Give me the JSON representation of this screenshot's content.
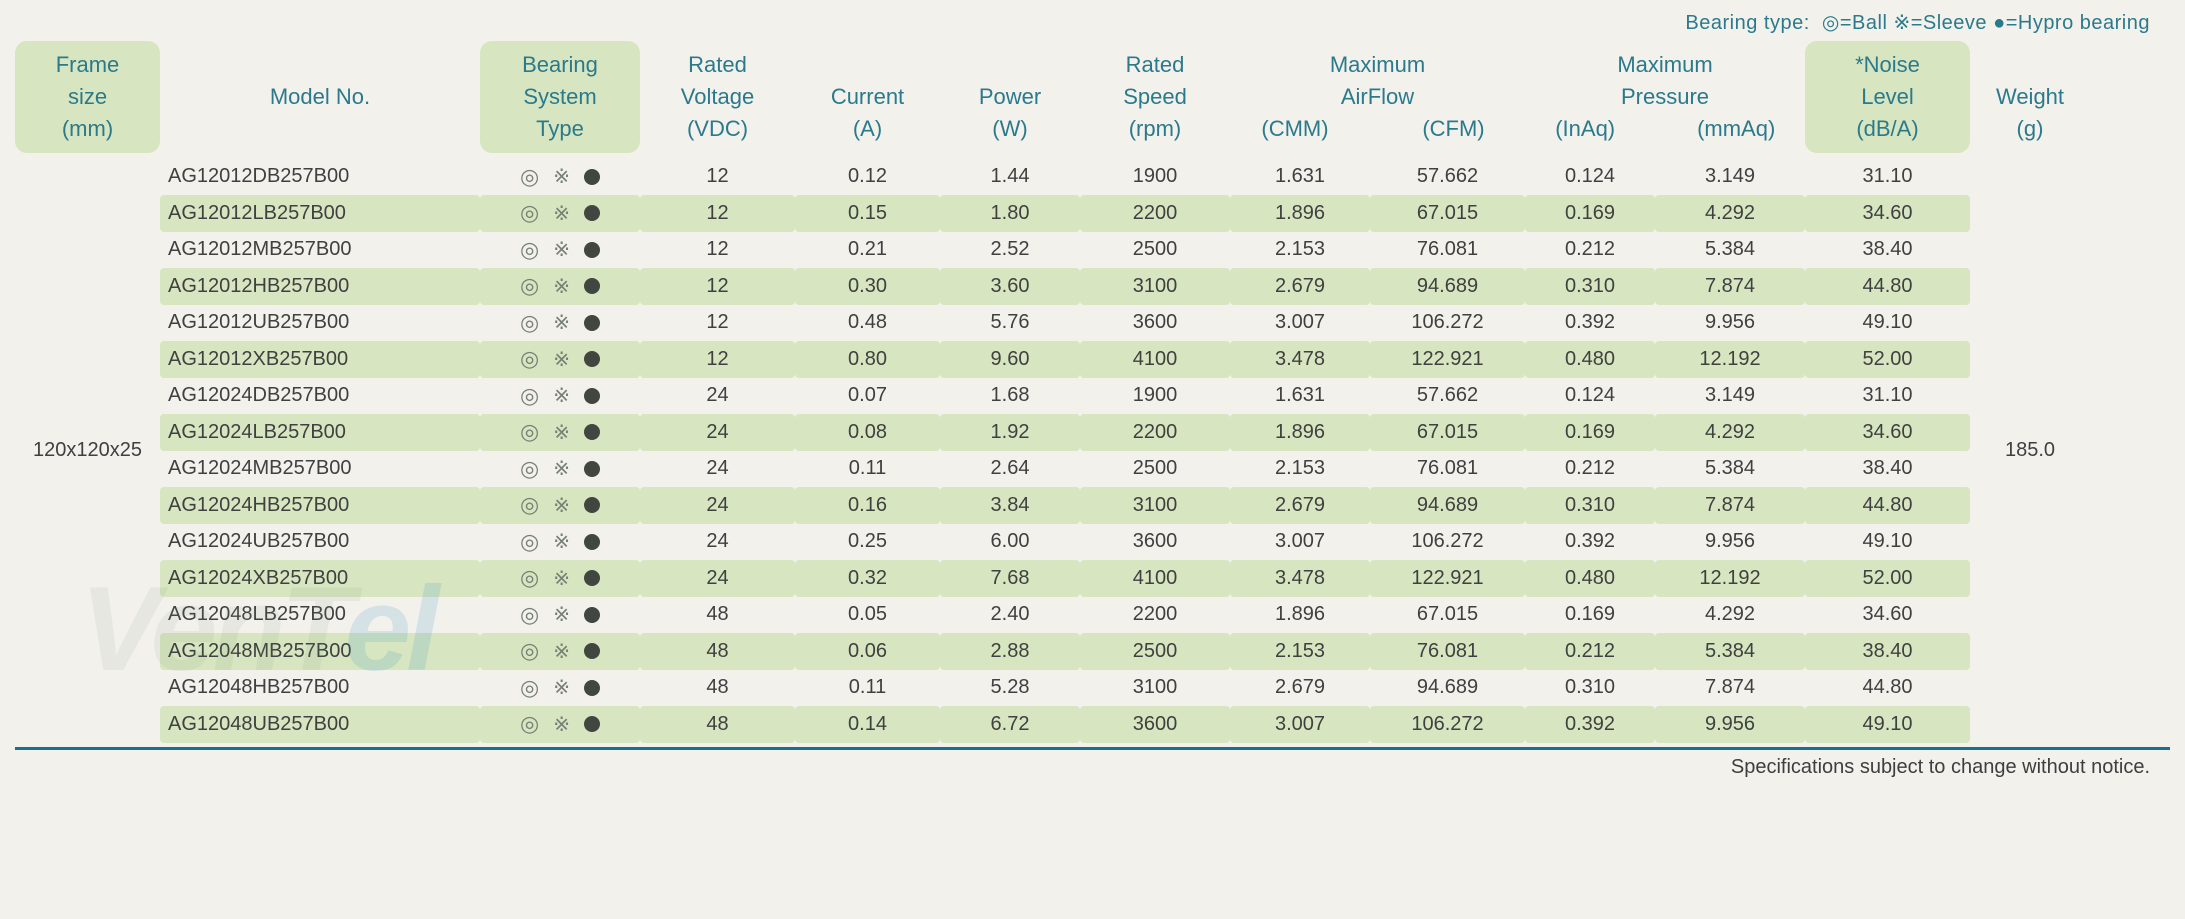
{
  "legend": {
    "prefix": "Bearing type:",
    "ball": "◎=Ball",
    "sleeve": "※=Sleeve",
    "hypro": "●=Hypro bearing"
  },
  "columns": {
    "frame": [
      "Frame",
      "size",
      "(mm)"
    ],
    "model": [
      "Model No."
    ],
    "bearing": [
      "Bearing",
      "System",
      "Type"
    ],
    "voltage": [
      "Rated",
      "Voltage",
      "(VDC)"
    ],
    "current": [
      "Current",
      "(A)"
    ],
    "power": [
      "Power",
      "(W)"
    ],
    "speed": [
      "Rated",
      "Speed",
      "(rpm)"
    ],
    "airflow": [
      "Maximum",
      "AirFlow"
    ],
    "airflow_sub": [
      "(CMM)",
      "(CFM)"
    ],
    "pressure": [
      "Maximum",
      "Pressure"
    ],
    "pressure_sub": [
      "(InAq)",
      "(mmAq)"
    ],
    "noise": [
      "*Noise",
      "Level",
      "(dB/A)"
    ],
    "weight": [
      "Weight",
      "(g)"
    ]
  },
  "frame_size": "120x120x25",
  "weight_value": "185.0",
  "rows": [
    {
      "model": "AG12012DB257B00",
      "voltage": "12",
      "current": "0.12",
      "power": "1.44",
      "speed": "1900",
      "cmm": "1.631",
      "cfm": "57.662",
      "inaq": "0.124",
      "mmaq": "3.149",
      "noise": "31.10"
    },
    {
      "model": "AG12012LB257B00",
      "voltage": "12",
      "current": "0.15",
      "power": "1.80",
      "speed": "2200",
      "cmm": "1.896",
      "cfm": "67.015",
      "inaq": "0.169",
      "mmaq": "4.292",
      "noise": "34.60"
    },
    {
      "model": "AG12012MB257B00",
      "voltage": "12",
      "current": "0.21",
      "power": "2.52",
      "speed": "2500",
      "cmm": "2.153",
      "cfm": "76.081",
      "inaq": "0.212",
      "mmaq": "5.384",
      "noise": "38.40"
    },
    {
      "model": "AG12012HB257B00",
      "voltage": "12",
      "current": "0.30",
      "power": "3.60",
      "speed": "3100",
      "cmm": "2.679",
      "cfm": "94.689",
      "inaq": "0.310",
      "mmaq": "7.874",
      "noise": "44.80"
    },
    {
      "model": "AG12012UB257B00",
      "voltage": "12",
      "current": "0.48",
      "power": "5.76",
      "speed": "3600",
      "cmm": "3.007",
      "cfm": "106.272",
      "inaq": "0.392",
      "mmaq": "9.956",
      "noise": "49.10"
    },
    {
      "model": "AG12012XB257B00",
      "voltage": "12",
      "current": "0.80",
      "power": "9.60",
      "speed": "4100",
      "cmm": "3.478",
      "cfm": "122.921",
      "inaq": "0.480",
      "mmaq": "12.192",
      "noise": "52.00"
    },
    {
      "model": "AG12024DB257B00",
      "voltage": "24",
      "current": "0.07",
      "power": "1.68",
      "speed": "1900",
      "cmm": "1.631",
      "cfm": "57.662",
      "inaq": "0.124",
      "mmaq": "3.149",
      "noise": "31.10"
    },
    {
      "model": "AG12024LB257B00",
      "voltage": "24",
      "current": "0.08",
      "power": "1.92",
      "speed": "2200",
      "cmm": "1.896",
      "cfm": "67.015",
      "inaq": "0.169",
      "mmaq": "4.292",
      "noise": "34.60"
    },
    {
      "model": "AG12024MB257B00",
      "voltage": "24",
      "current": "0.11",
      "power": "2.64",
      "speed": "2500",
      "cmm": "2.153",
      "cfm": "76.081",
      "inaq": "0.212",
      "mmaq": "5.384",
      "noise": "38.40"
    },
    {
      "model": "AG12024HB257B00",
      "voltage": "24",
      "current": "0.16",
      "power": "3.84",
      "speed": "3100",
      "cmm": "2.679",
      "cfm": "94.689",
      "inaq": "0.310",
      "mmaq": "7.874",
      "noise": "44.80"
    },
    {
      "model": "AG12024UB257B00",
      "voltage": "24",
      "current": "0.25",
      "power": "6.00",
      "speed": "3600",
      "cmm": "3.007",
      "cfm": "106.272",
      "inaq": "0.392",
      "mmaq": "9.956",
      "noise": "49.10"
    },
    {
      "model": "AG12024XB257B00",
      "voltage": "24",
      "current": "0.32",
      "power": "7.68",
      "speed": "4100",
      "cmm": "3.478",
      "cfm": "122.921",
      "inaq": "0.480",
      "mmaq": "12.192",
      "noise": "52.00"
    },
    {
      "model": "AG12048LB257B00",
      "voltage": "48",
      "current": "0.05",
      "power": "2.40",
      "speed": "2200",
      "cmm": "1.896",
      "cfm": "67.015",
      "inaq": "0.169",
      "mmaq": "4.292",
      "noise": "34.60"
    },
    {
      "model": "AG12048MB257B00",
      "voltage": "48",
      "current": "0.06",
      "power": "2.88",
      "speed": "2500",
      "cmm": "2.153",
      "cfm": "76.081",
      "inaq": "0.212",
      "mmaq": "5.384",
      "noise": "38.40"
    },
    {
      "model": "AG12048HB257B00",
      "voltage": "48",
      "current": "0.11",
      "power": "5.28",
      "speed": "3100",
      "cmm": "2.679",
      "cfm": "94.689",
      "inaq": "0.310",
      "mmaq": "7.874",
      "noise": "44.80"
    },
    {
      "model": "AG12048UB257B00",
      "voltage": "48",
      "current": "0.14",
      "power": "6.72",
      "speed": "3600",
      "cmm": "3.007",
      "cfm": "106.272",
      "inaq": "0.392",
      "mmaq": "9.956",
      "noise": "49.10"
    }
  ],
  "footer": "Specifications subject to change without notice.",
  "bearing_icons": {
    "ball": "◎",
    "sleeve": "※"
  },
  "colors": {
    "header_bg": "#d7e6c0",
    "header_text": "#2b7a8c",
    "body_text": "#404040",
    "page_bg": "#f2f1ec",
    "rule": "#1a6f8a"
  },
  "watermark": {
    "part1": "VenT",
    "part2": "el"
  }
}
